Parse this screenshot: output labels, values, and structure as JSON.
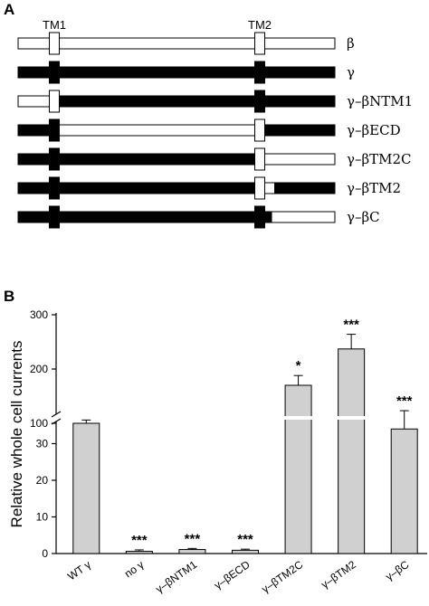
{
  "figure": {
    "panel_a_label": "A",
    "panel_b_label": "B"
  },
  "panel_a": {
    "tm_labels": [
      "TM1",
      "TM2"
    ],
    "constructs": [
      {
        "label": "β",
        "segments": [
          [
            "white",
            0,
            1
          ]
        ],
        "tm1": "white",
        "tm2": "white"
      },
      {
        "label": "γ",
        "segments": [
          [
            "black",
            0,
            1
          ]
        ],
        "tm1": "black",
        "tm2": "black"
      },
      {
        "label": "γ–βNTM1",
        "segments": [
          [
            "white",
            0,
            0.13
          ],
          [
            "black",
            0.13,
            1
          ]
        ],
        "tm1": "white",
        "tm2": "black"
      },
      {
        "label": "γ–βECD",
        "segments": [
          [
            "black",
            0,
            0.13
          ],
          [
            "white",
            0.13,
            0.76
          ],
          [
            "black",
            0.76,
            1
          ]
        ],
        "tm1": "black",
        "tm2": "white"
      },
      {
        "label": "γ–βTM2C",
        "segments": [
          [
            "black",
            0,
            0.76
          ],
          [
            "white",
            0.76,
            1
          ]
        ],
        "tm1": "black",
        "tm2": "white"
      },
      {
        "label": "γ–βTM2",
        "segments": [
          [
            "black",
            0,
            0.76
          ],
          [
            "white",
            0.76,
            0.81
          ],
          [
            "black",
            0.81,
            1
          ]
        ],
        "tm1": "black",
        "tm2": "white"
      },
      {
        "label": "γ–βC",
        "segments": [
          [
            "black",
            0,
            0.8
          ],
          [
            "white",
            0.8,
            1
          ]
        ],
        "tm1": "black",
        "tm2": "black"
      }
    ]
  },
  "chart_data": {
    "type": "bar",
    "ylabel": "Relative whole cell currents",
    "categories": [
      "WT γ",
      "no γ",
      "γ–βNTM1",
      "γ–βECD",
      "γ–βTM2C",
      "γ–βTM2",
      "γ–βC"
    ],
    "values": [
      100,
      0.6,
      1.1,
      0.9,
      170,
      237,
      34
    ],
    "errors": [
      6,
      0.4,
      0.3,
      0.3,
      18,
      27,
      5
    ],
    "significance": [
      "",
      "***",
      "***",
      "***",
      "*",
      "***",
      "***"
    ],
    "y_axis_break": true,
    "lower_segment": {
      "ylim": [
        0,
        40
      ],
      "ticks": [
        0,
        10,
        20,
        30
      ]
    },
    "upper_segment": {
      "ylim": [
        70,
        300
      ],
      "ticks": [
        100,
        200,
        300
      ]
    },
    "grid": false,
    "bar_color": "#d0d0d0"
  }
}
